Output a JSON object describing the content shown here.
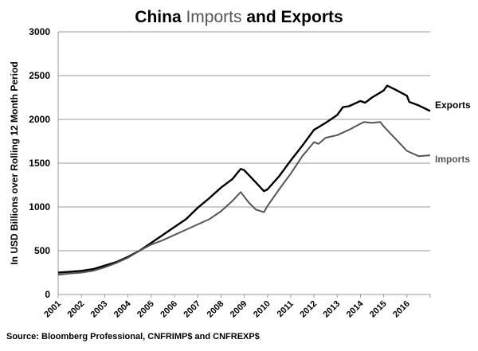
{
  "chart_data": {
    "type": "line",
    "title_parts": [
      "China ",
      "Imports",
      " and Exports"
    ],
    "title": "China Imports and Exports",
    "ylabel": "In USD Billions over Rolling 12 Month Period",
    "xlabel": "",
    "ylim": [
      0,
      3000
    ],
    "xlim": [
      2001,
      2017
    ],
    "yticks": [
      0,
      500,
      1000,
      1500,
      2000,
      2500,
      3000
    ],
    "xticks": [
      "2001",
      "2002",
      "2003",
      "2004",
      "2005",
      "2006",
      "2007",
      "2008",
      "2009",
      "2010",
      "2011",
      "2012",
      "2013",
      "2014",
      "2015",
      "2016"
    ],
    "grid": true,
    "legend": "inline-right",
    "source": "Source: Bloomberg Professional, CNFRIMP$ and CNFREXP$",
    "series": [
      {
        "name": "Exports",
        "color": "#000000",
        "x": [
          2001,
          2001.5,
          2002,
          2002.5,
          2003,
          2003.5,
          2004,
          2004.5,
          2005,
          2005.5,
          2006,
          2006.5,
          2007,
          2007.5,
          2008,
          2008.5,
          2008.85,
          2009,
          2009.5,
          2009.85,
          2010,
          2010.5,
          2011,
          2011.5,
          2012,
          2012.5,
          2013,
          2013.25,
          2013.5,
          2014,
          2014.2,
          2014.5,
          2015,
          2015.15,
          2015.5,
          2016,
          2016.1,
          2016.5,
          2017
        ],
        "values": [
          250,
          260,
          270,
          290,
          330,
          370,
          430,
          500,
          590,
          680,
          770,
          860,
          990,
          1100,
          1220,
          1320,
          1435,
          1420,
          1280,
          1180,
          1200,
          1350,
          1530,
          1700,
          1880,
          1960,
          2050,
          2140,
          2150,
          2210,
          2190,
          2250,
          2330,
          2385,
          2340,
          2270,
          2200,
          2160,
          2095
        ]
      },
      {
        "name": "Imports",
        "color": "#555555",
        "x": [
          2001,
          2001.5,
          2002,
          2002.5,
          2003,
          2003.5,
          2004,
          2004.5,
          2005,
          2005.5,
          2006,
          2006.5,
          2007,
          2007.5,
          2008,
          2008.5,
          2008.85,
          2009.2,
          2009.5,
          2009.85,
          2010,
          2010.5,
          2011,
          2011.5,
          2012,
          2012.2,
          2012.5,
          2013,
          2013.5,
          2014,
          2014.15,
          2014.5,
          2014.85,
          2015,
          2015.5,
          2016,
          2016.5,
          2017
        ],
        "values": [
          225,
          240,
          250,
          270,
          310,
          360,
          420,
          500,
          570,
          620,
          680,
          740,
          800,
          860,
          950,
          1070,
          1170,
          1050,
          970,
          940,
          1010,
          1200,
          1380,
          1580,
          1740,
          1720,
          1790,
          1820,
          1880,
          1950,
          1970,
          1960,
          1970,
          1920,
          1780,
          1640,
          1580,
          1590
        ]
      }
    ]
  }
}
